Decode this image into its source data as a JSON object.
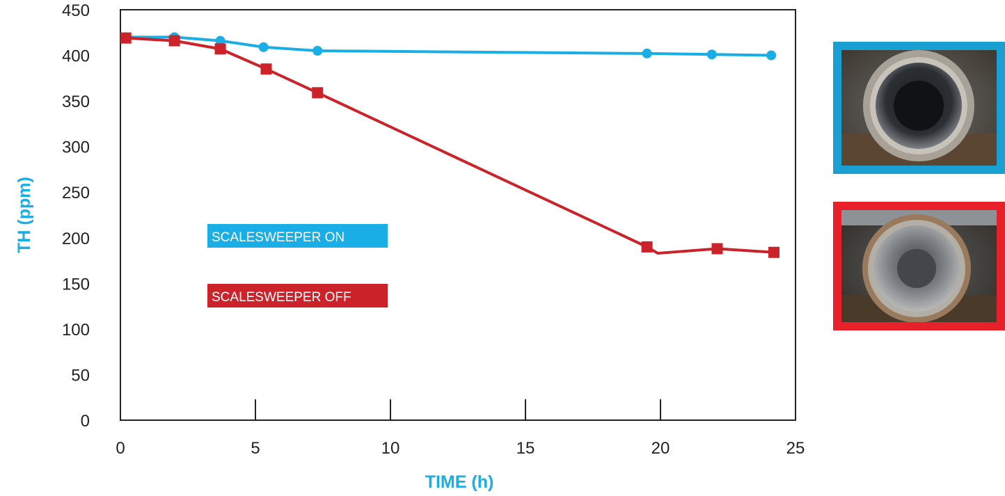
{
  "chart_data": {
    "type": "line",
    "xlabel": "TIME (h)",
    "ylabel": "TH (ppm)",
    "xlim": [
      0,
      25
    ],
    "ylim": [
      0,
      450
    ],
    "x_ticks": [
      "0",
      "5",
      "10",
      "15",
      "20",
      "25"
    ],
    "y_ticks": [
      "0",
      "50",
      "100",
      "150",
      "200",
      "250",
      "300",
      "350",
      "400",
      "450"
    ],
    "grid": false,
    "series": [
      {
        "name": "SCALESWEEPER ON",
        "color": "#19aee6",
        "marker": "circle",
        "x": [
          0.2,
          2.0,
          3.7,
          5.3,
          7.3,
          19.5,
          21.9,
          24.1
        ],
        "y": [
          420,
          420,
          416,
          409,
          405,
          402,
          401,
          400
        ]
      },
      {
        "name": "SCALESWEEPER OFF",
        "color": "#cc2229",
        "marker": "square",
        "x": [
          0.2,
          2.0,
          3.7,
          5.4,
          7.3,
          19.5,
          19.9,
          22.1,
          24.2
        ],
        "y": [
          419,
          416,
          407,
          385,
          359,
          190,
          183,
          188,
          184
        ],
        "marker_indices": [
          0,
          1,
          2,
          3,
          4,
          5,
          7,
          8
        ]
      }
    ]
  },
  "photos": [
    {
      "name": "scalesweeper-on-pipe-photo",
      "frame_color": "#1a9fd3"
    },
    {
      "name": "scalesweeper-off-pipe-photo",
      "frame_color": "#e8202a"
    }
  ],
  "colors": {
    "axis_title": "#19aee6",
    "axis": "#222222"
  }
}
